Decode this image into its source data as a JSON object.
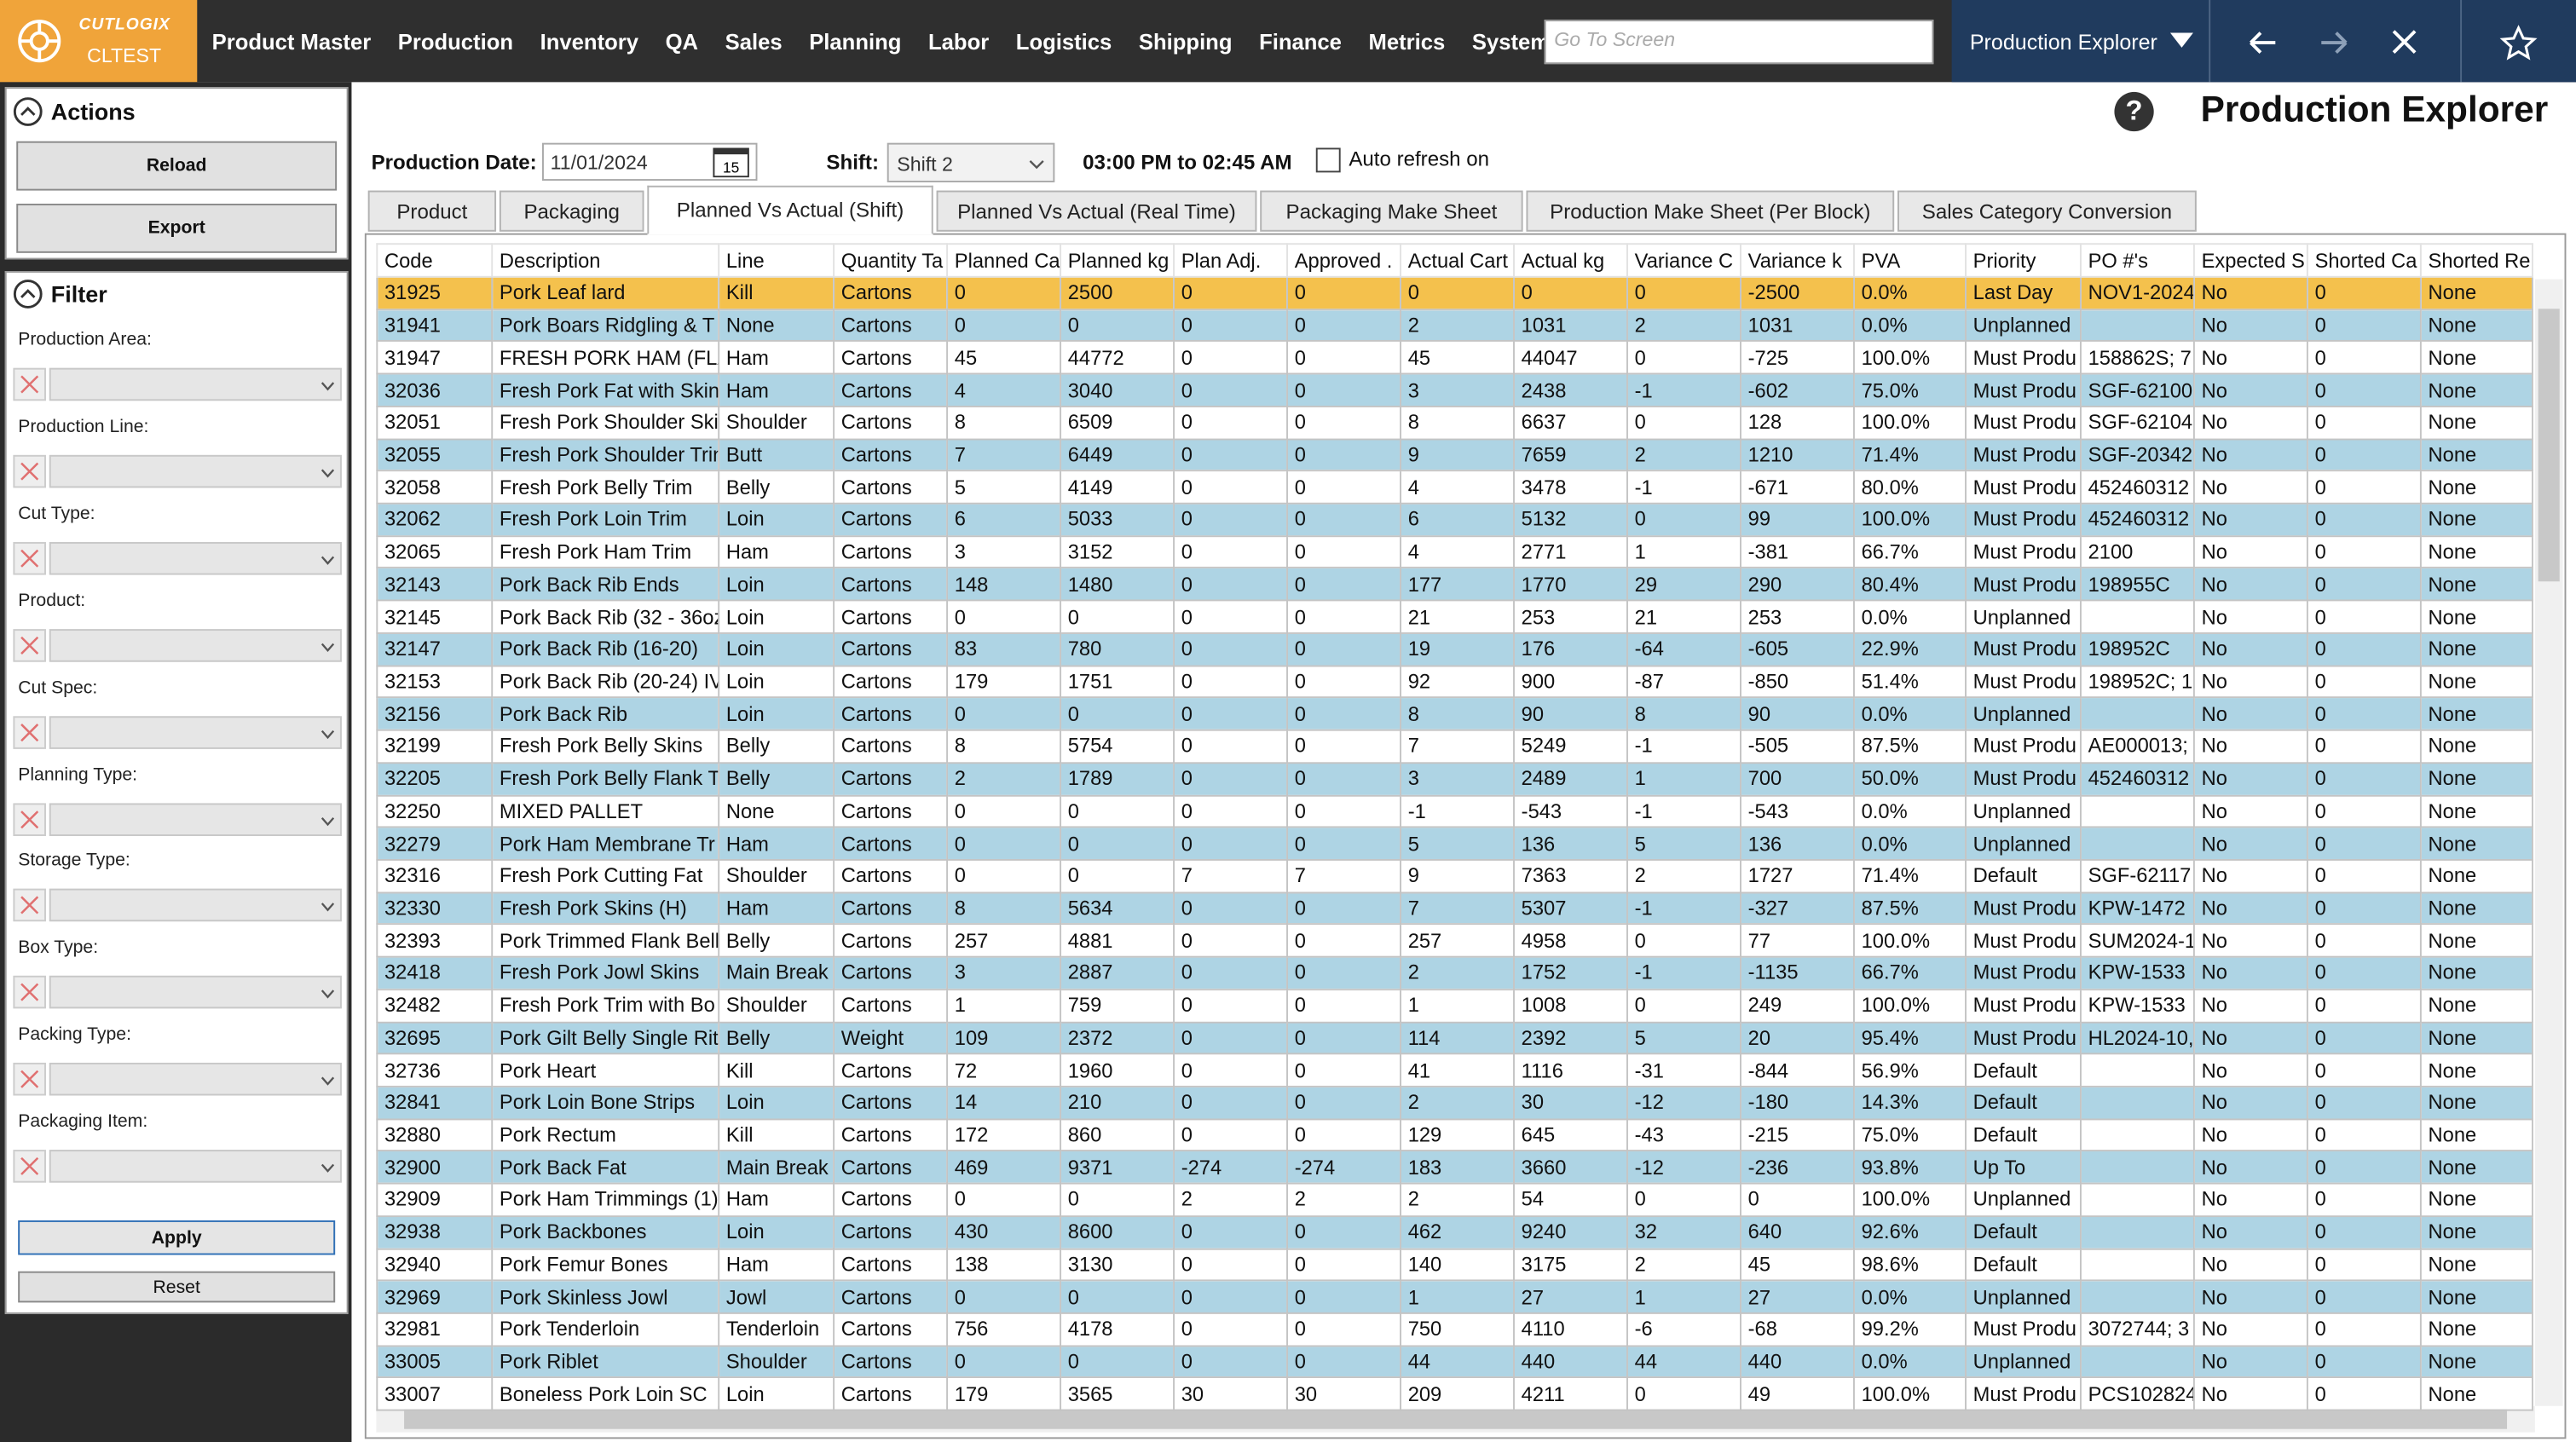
{
  "nav": {
    "logo_top": "CUTLOGIX",
    "logo_bottom": "CLTEST",
    "menu": [
      "Product Master",
      "Production",
      "Inventory",
      "QA",
      "Sales",
      "Planning",
      "Labor",
      "Logistics",
      "Shipping",
      "Finance",
      "Metrics",
      "System"
    ],
    "search_placeholder": "Go To Screen",
    "screen_select": "Production Explorer"
  },
  "actions": {
    "title": "Actions",
    "buttons": [
      "Reload",
      "Export"
    ]
  },
  "filter": {
    "title": "Filter",
    "fields": [
      "Production Area:",
      "Production Line:",
      "Cut Type:",
      "Product:",
      "Cut Spec:",
      "Planning Type:",
      "Storage Type:",
      "Box Type:",
      "Packing Type:",
      "Packaging Item:"
    ],
    "buttons": [
      "Apply",
      "Reset"
    ]
  },
  "header": {
    "help_icon": "?",
    "title": "Production Explorer"
  },
  "controls": {
    "date_label": "Production Date:",
    "date": "11/01/2024",
    "calendar_day": "15",
    "shift_label": "Shift:",
    "shift": "Shift 2",
    "time_range": "03:00 PM to 02:45 AM",
    "auto_refresh": "Auto refresh on"
  },
  "tabs": [
    "Product",
    "Packaging",
    "Planned Vs Actual (Shift)",
    "Planned Vs Actual (Real Time)",
    "Packaging Make Sheet",
    "Production Make Sheet (Per Block)",
    "Sales Category Conversion"
  ],
  "active_tab": 2,
  "table": {
    "selected_row": 0,
    "columns": [
      "Code",
      "Description",
      "Line",
      "Quantity Ta",
      "Planned Ca",
      "Planned kg",
      "Plan Adj.",
      "Approved .",
      "Actual Cart",
      "Actual kg",
      "Variance C",
      "Variance k",
      "PVA",
      "Priority",
      "PO #'s",
      "Expected S",
      "Shorted Ca",
      "Shorted Re"
    ],
    "rows": [
      [
        "31925",
        "Pork Leaf lard",
        "Kill",
        "Cartons",
        "0",
        "2500",
        "0",
        "0",
        "0",
        "0",
        "0",
        "-2500",
        "0.0%",
        "Last Day",
        "NOV1-2024",
        "No",
        "0",
        "None"
      ],
      [
        "31941",
        "Pork Boars Ridgling & T",
        "None",
        "Cartons",
        "0",
        "0",
        "0",
        "0",
        "2",
        "1031",
        "2",
        "1031",
        "0.0%",
        "Unplanned",
        null,
        "No",
        "0",
        "None"
      ],
      [
        "31947",
        "FRESH PORK HAM (FLAI",
        "Ham",
        "Cartons",
        "45",
        "44772",
        "0",
        "0",
        "45",
        "44047",
        "0",
        "-725",
        "100.0%",
        "Must Produ",
        "158862S; 7",
        "No",
        "0",
        "None"
      ],
      [
        "32036",
        "Fresh Pork Fat with Skin",
        "Ham",
        "Cartons",
        "4",
        "3040",
        "0",
        "0",
        "3",
        "2438",
        "-1",
        "-602",
        "75.0%",
        "Must Produ",
        "SGF-62100",
        "No",
        "0",
        "None"
      ],
      [
        "32051",
        "Fresh Pork Shoulder Ski",
        "Shoulder",
        "Cartons",
        "8",
        "6509",
        "0",
        "0",
        "8",
        "6637",
        "0",
        "128",
        "100.0%",
        "Must Produ",
        "SGF-62104",
        "No",
        "0",
        "None"
      ],
      [
        "32055",
        "Fresh Pork Shoulder Trin",
        "Butt",
        "Cartons",
        "7",
        "6449",
        "0",
        "0",
        "9",
        "7659",
        "2",
        "1210",
        "71.4%",
        "Must Produ",
        "SGF-20342",
        "No",
        "0",
        "None"
      ],
      [
        "32058",
        "Fresh Pork Belly Trim",
        "Belly",
        "Cartons",
        "5",
        "4149",
        "0",
        "0",
        "4",
        "3478",
        "-1",
        "-671",
        "80.0%",
        "Must Produ",
        "452460312",
        "No",
        "0",
        "None"
      ],
      [
        "32062",
        "Fresh Pork Loin Trim",
        "Loin",
        "Cartons",
        "6",
        "5033",
        "0",
        "0",
        "6",
        "5132",
        "0",
        "99",
        "100.0%",
        "Must Produ",
        "452460312",
        "No",
        "0",
        "None"
      ],
      [
        "32065",
        "Fresh Pork Ham Trim",
        "Ham",
        "Cartons",
        "3",
        "3152",
        "0",
        "0",
        "4",
        "2771",
        "1",
        "-381",
        "66.7%",
        "Must Produ",
        "2100",
        "No",
        "0",
        "None"
      ],
      [
        "32143",
        "Pork Back Rib Ends",
        "Loin",
        "Cartons",
        "148",
        "1480",
        "0",
        "0",
        "177",
        "1770",
        "29",
        "290",
        "80.4%",
        "Must Produ",
        "198955C",
        "No",
        "0",
        "None"
      ],
      [
        "32145",
        "Pork Back Rib (32 - 36oz",
        "Loin",
        "Cartons",
        "0",
        "0",
        "0",
        "0",
        "21",
        "253",
        "21",
        "253",
        "0.0%",
        "Unplanned",
        null,
        "No",
        "0",
        "None"
      ],
      [
        "32147",
        "Pork Back Rib (16-20)",
        "Loin",
        "Cartons",
        "83",
        "780",
        "0",
        "0",
        "19",
        "176",
        "-64",
        "-605",
        "22.9%",
        "Must Produ",
        "198952C",
        "No",
        "0",
        "None"
      ],
      [
        "32153",
        "Pork Back Rib (20-24) IV",
        "Loin",
        "Cartons",
        "179",
        "1751",
        "0",
        "0",
        "92",
        "900",
        "-87",
        "-850",
        "51.4%",
        "Must Produ",
        "198952C; 1",
        "No",
        "0",
        "None"
      ],
      [
        "32156",
        "Pork Back Rib",
        "Loin",
        "Cartons",
        "0",
        "0",
        "0",
        "0",
        "8",
        "90",
        "8",
        "90",
        "0.0%",
        "Unplanned",
        null,
        "No",
        "0",
        "None"
      ],
      [
        "32199",
        "Fresh Pork Belly Skins",
        "Belly",
        "Cartons",
        "8",
        "5754",
        "0",
        "0",
        "7",
        "5249",
        "-1",
        "-505",
        "87.5%",
        "Must Produ",
        "AE000013;",
        "No",
        "0",
        "None"
      ],
      [
        "32205",
        "Fresh Pork Belly Flank Tr",
        "Belly",
        "Cartons",
        "2",
        "1789",
        "0",
        "0",
        "3",
        "2489",
        "1",
        "700",
        "50.0%",
        "Must Produ",
        "452460312",
        "No",
        "0",
        "None"
      ],
      [
        "32250",
        "MIXED PALLET",
        "None",
        "Cartons",
        "0",
        "0",
        "0",
        "0",
        "-1",
        "-543",
        "-1",
        "-543",
        "0.0%",
        "Unplanned",
        null,
        "No",
        "0",
        "None"
      ],
      [
        "32279",
        "Pork Ham Membrane Tr",
        "Ham",
        "Cartons",
        "0",
        "0",
        "0",
        "0",
        "5",
        "136",
        "5",
        "136",
        "0.0%",
        "Unplanned",
        null,
        "No",
        "0",
        "None"
      ],
      [
        "32316",
        "Fresh Pork Cutting Fat",
        "Shoulder",
        "Cartons",
        "0",
        "0",
        "7",
        "7",
        "9",
        "7363",
        "2",
        "1727",
        "71.4%",
        "Default",
        "SGF-62117",
        "No",
        "0",
        "None"
      ],
      [
        "32330",
        "Fresh Pork Skins (H)",
        "Ham",
        "Cartons",
        "8",
        "5634",
        "0",
        "0",
        "7",
        "5307",
        "-1",
        "-327",
        "87.5%",
        "Must Produ",
        "KPW-1472",
        "No",
        "0",
        "None"
      ],
      [
        "32393",
        "Pork Trimmed Flank Bell",
        "Belly",
        "Cartons",
        "257",
        "4881",
        "0",
        "0",
        "257",
        "4958",
        "0",
        "77",
        "100.0%",
        "Must Produ",
        "SUM2024-1",
        "No",
        "0",
        "None"
      ],
      [
        "32418",
        "Fresh Pork Jowl Skins",
        "Main Break",
        "Cartons",
        "3",
        "2887",
        "0",
        "0",
        "2",
        "1752",
        "-1",
        "-1135",
        "66.7%",
        "Must Produ",
        "KPW-1533",
        "No",
        "0",
        "None"
      ],
      [
        "32482",
        "Fresh Pork Trim with Bo",
        "Shoulder",
        "Cartons",
        "1",
        "759",
        "0",
        "0",
        "1",
        "1008",
        "0",
        "249",
        "100.0%",
        "Must Produ",
        "KPW-1533",
        "No",
        "0",
        "None"
      ],
      [
        "32695",
        "Pork Gilt Belly Single Rit",
        "Belly",
        "Weight",
        "109",
        "2372",
        "0",
        "0",
        "114",
        "2392",
        "5",
        "20",
        "95.4%",
        "Must Produ",
        "HL2024-10,",
        "No",
        "0",
        "None"
      ],
      [
        "32736",
        "Pork Heart",
        "Kill",
        "Cartons",
        "72",
        "1960",
        "0",
        "0",
        "41",
        "1116",
        "-31",
        "-844",
        "56.9%",
        "Default",
        null,
        "No",
        "0",
        "None"
      ],
      [
        "32841",
        "Pork Loin Bone Strips",
        "Loin",
        "Cartons",
        "14",
        "210",
        "0",
        "0",
        "2",
        "30",
        "-12",
        "-180",
        "14.3%",
        "Default",
        null,
        "No",
        "0",
        "None"
      ],
      [
        "32880",
        "Pork Rectum",
        "Kill",
        "Cartons",
        "172",
        "860",
        "0",
        "0",
        "129",
        "645",
        "-43",
        "-215",
        "75.0%",
        "Default",
        null,
        "No",
        "0",
        "None"
      ],
      [
        "32900",
        "Pork Back Fat",
        "Main Break",
        "Cartons",
        "469",
        "9371",
        "-274",
        "-274",
        "183",
        "3660",
        "-12",
        "-236",
        "93.8%",
        "Up To",
        null,
        "No",
        "0",
        "None"
      ],
      [
        "32909",
        "Pork Ham Trimmings (1)",
        "Ham",
        "Cartons",
        "0",
        "0",
        "2",
        "2",
        "2",
        "54",
        "0",
        "0",
        "100.0%",
        "Unplanned",
        null,
        "No",
        "0",
        "None"
      ],
      [
        "32938",
        "Pork Backbones",
        "Loin",
        "Cartons",
        "430",
        "8600",
        "0",
        "0",
        "462",
        "9240",
        "32",
        "640",
        "92.6%",
        "Default",
        null,
        "No",
        "0",
        "None"
      ],
      [
        "32940",
        "Pork Femur Bones",
        "Ham",
        "Cartons",
        "138",
        "3130",
        "0",
        "0",
        "140",
        "3175",
        "2",
        "45",
        "98.6%",
        "Default",
        null,
        "No",
        "0",
        "None"
      ],
      [
        "32969",
        "Pork Skinless Jowl",
        "Jowl",
        "Cartons",
        "0",
        "0",
        "0",
        "0",
        "1",
        "27",
        "1",
        "27",
        "0.0%",
        "Unplanned",
        null,
        "No",
        "0",
        "None"
      ],
      [
        "32981",
        "Pork Tenderloin",
        "Tenderloin",
        "Cartons",
        "756",
        "4178",
        "0",
        "0",
        "750",
        "4110",
        "-6",
        "-68",
        "99.2%",
        "Must Produ",
        "3072744; 3",
        "No",
        "0",
        "None"
      ],
      [
        "33005",
        "Pork Riblet",
        "Shoulder",
        "Cartons",
        "0",
        "0",
        "0",
        "0",
        "44",
        "440",
        "44",
        "440",
        "0.0%",
        "Unplanned",
        null,
        "No",
        "0",
        "None"
      ],
      [
        "33007",
        "Boneless Pork Loin SC",
        "Loin",
        "Cartons",
        "179",
        "3565",
        "30",
        "30",
        "209",
        "4211",
        "0",
        "49",
        "100.0%",
        "Must Produ",
        "PCS102824",
        "No",
        "0",
        "None"
      ]
    ]
  }
}
